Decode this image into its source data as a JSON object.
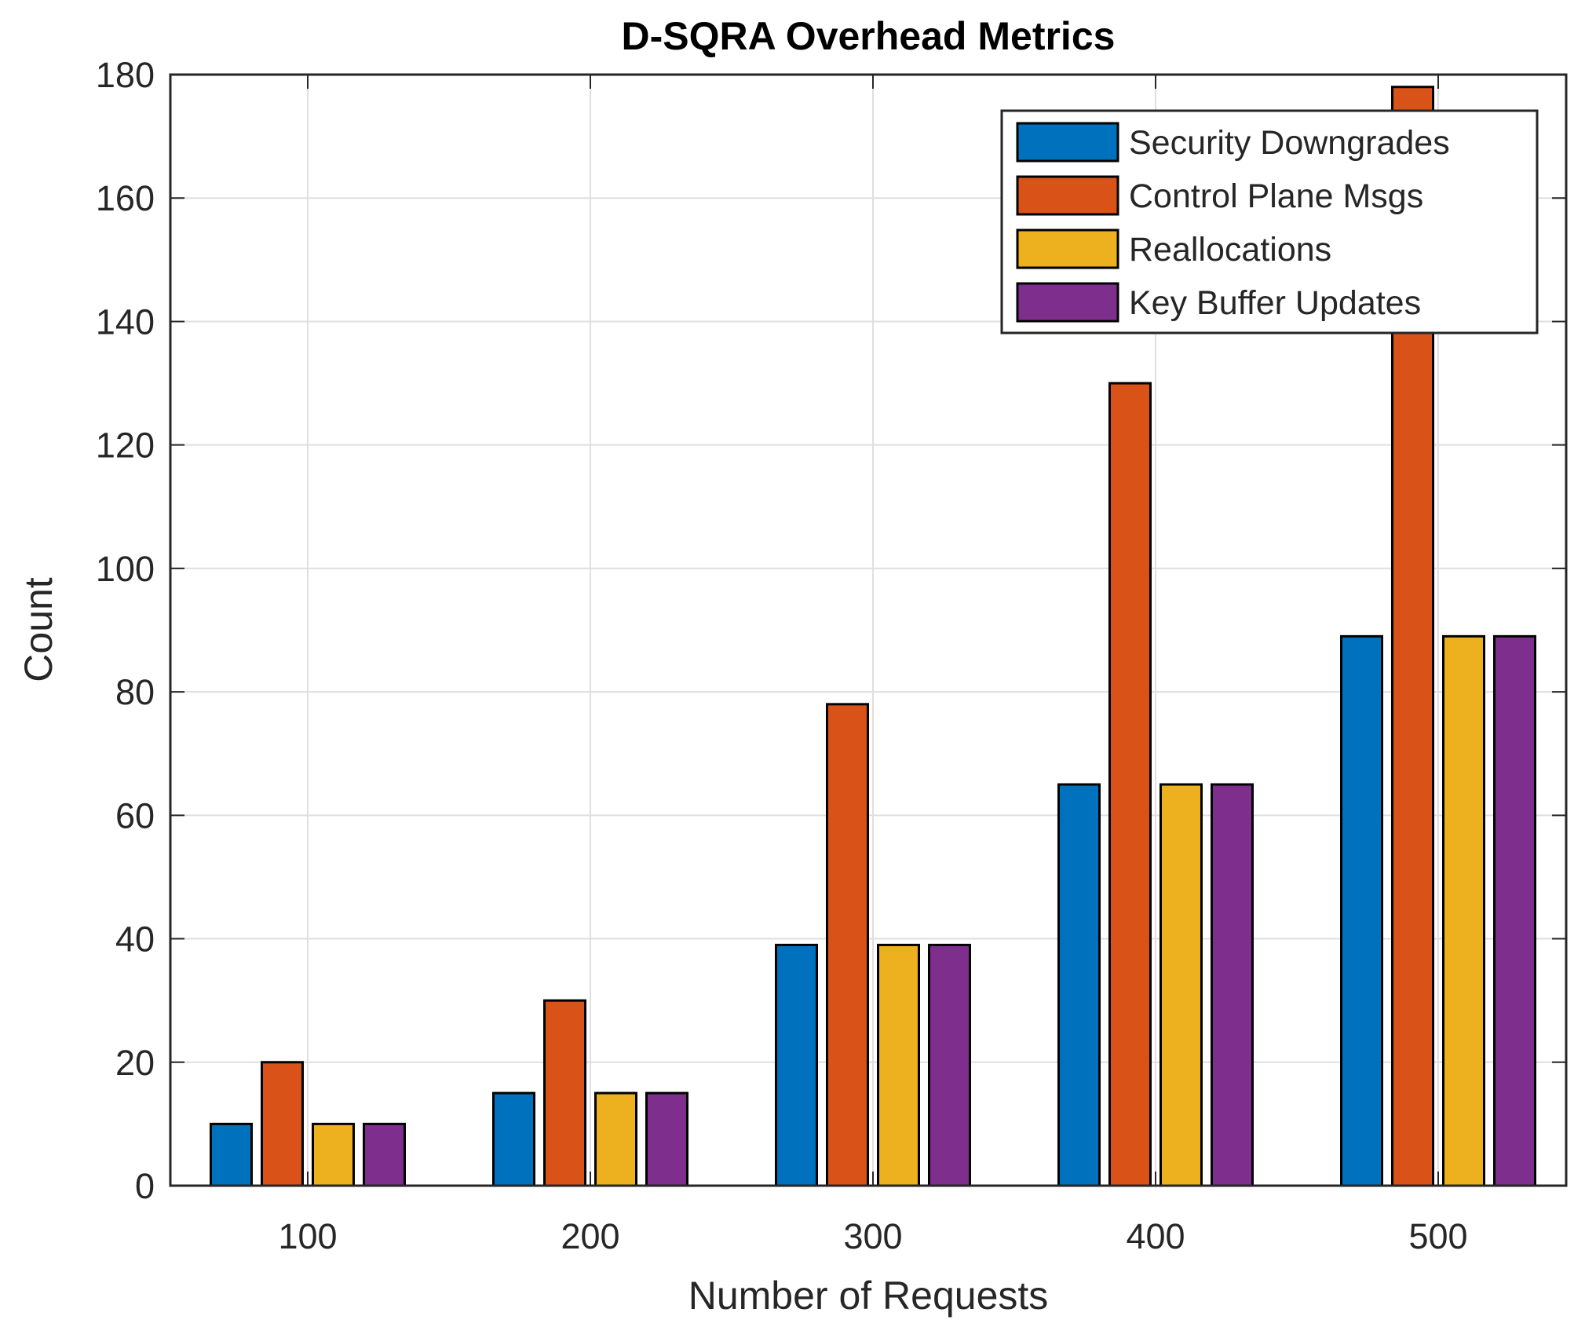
{
  "chart_data": {
    "type": "bar",
    "title": "D-SQRA Overhead Metrics",
    "xlabel": "Number of Requests",
    "ylabel": "Count",
    "categories": [
      "100",
      "200",
      "300",
      "400",
      "500"
    ],
    "ylim": [
      0,
      180
    ],
    "yticks": [
      0,
      20,
      40,
      60,
      80,
      100,
      120,
      140,
      160,
      180
    ],
    "grid": true,
    "legend_position": "top-right",
    "series": [
      {
        "name": "Security Downgrades",
        "color": "#0072BD",
        "values": [
          10,
          15,
          39,
          65,
          89
        ]
      },
      {
        "name": "Control Plane Msgs",
        "color": "#D95319",
        "values": [
          20,
          30,
          78,
          130,
          178
        ]
      },
      {
        "name": "Reallocations",
        "color": "#EDB120",
        "values": [
          10,
          15,
          39,
          65,
          89
        ]
      },
      {
        "name": "Key Buffer Updates",
        "color": "#7E2F8E",
        "values": [
          10,
          15,
          39,
          65,
          89
        ]
      }
    ]
  }
}
